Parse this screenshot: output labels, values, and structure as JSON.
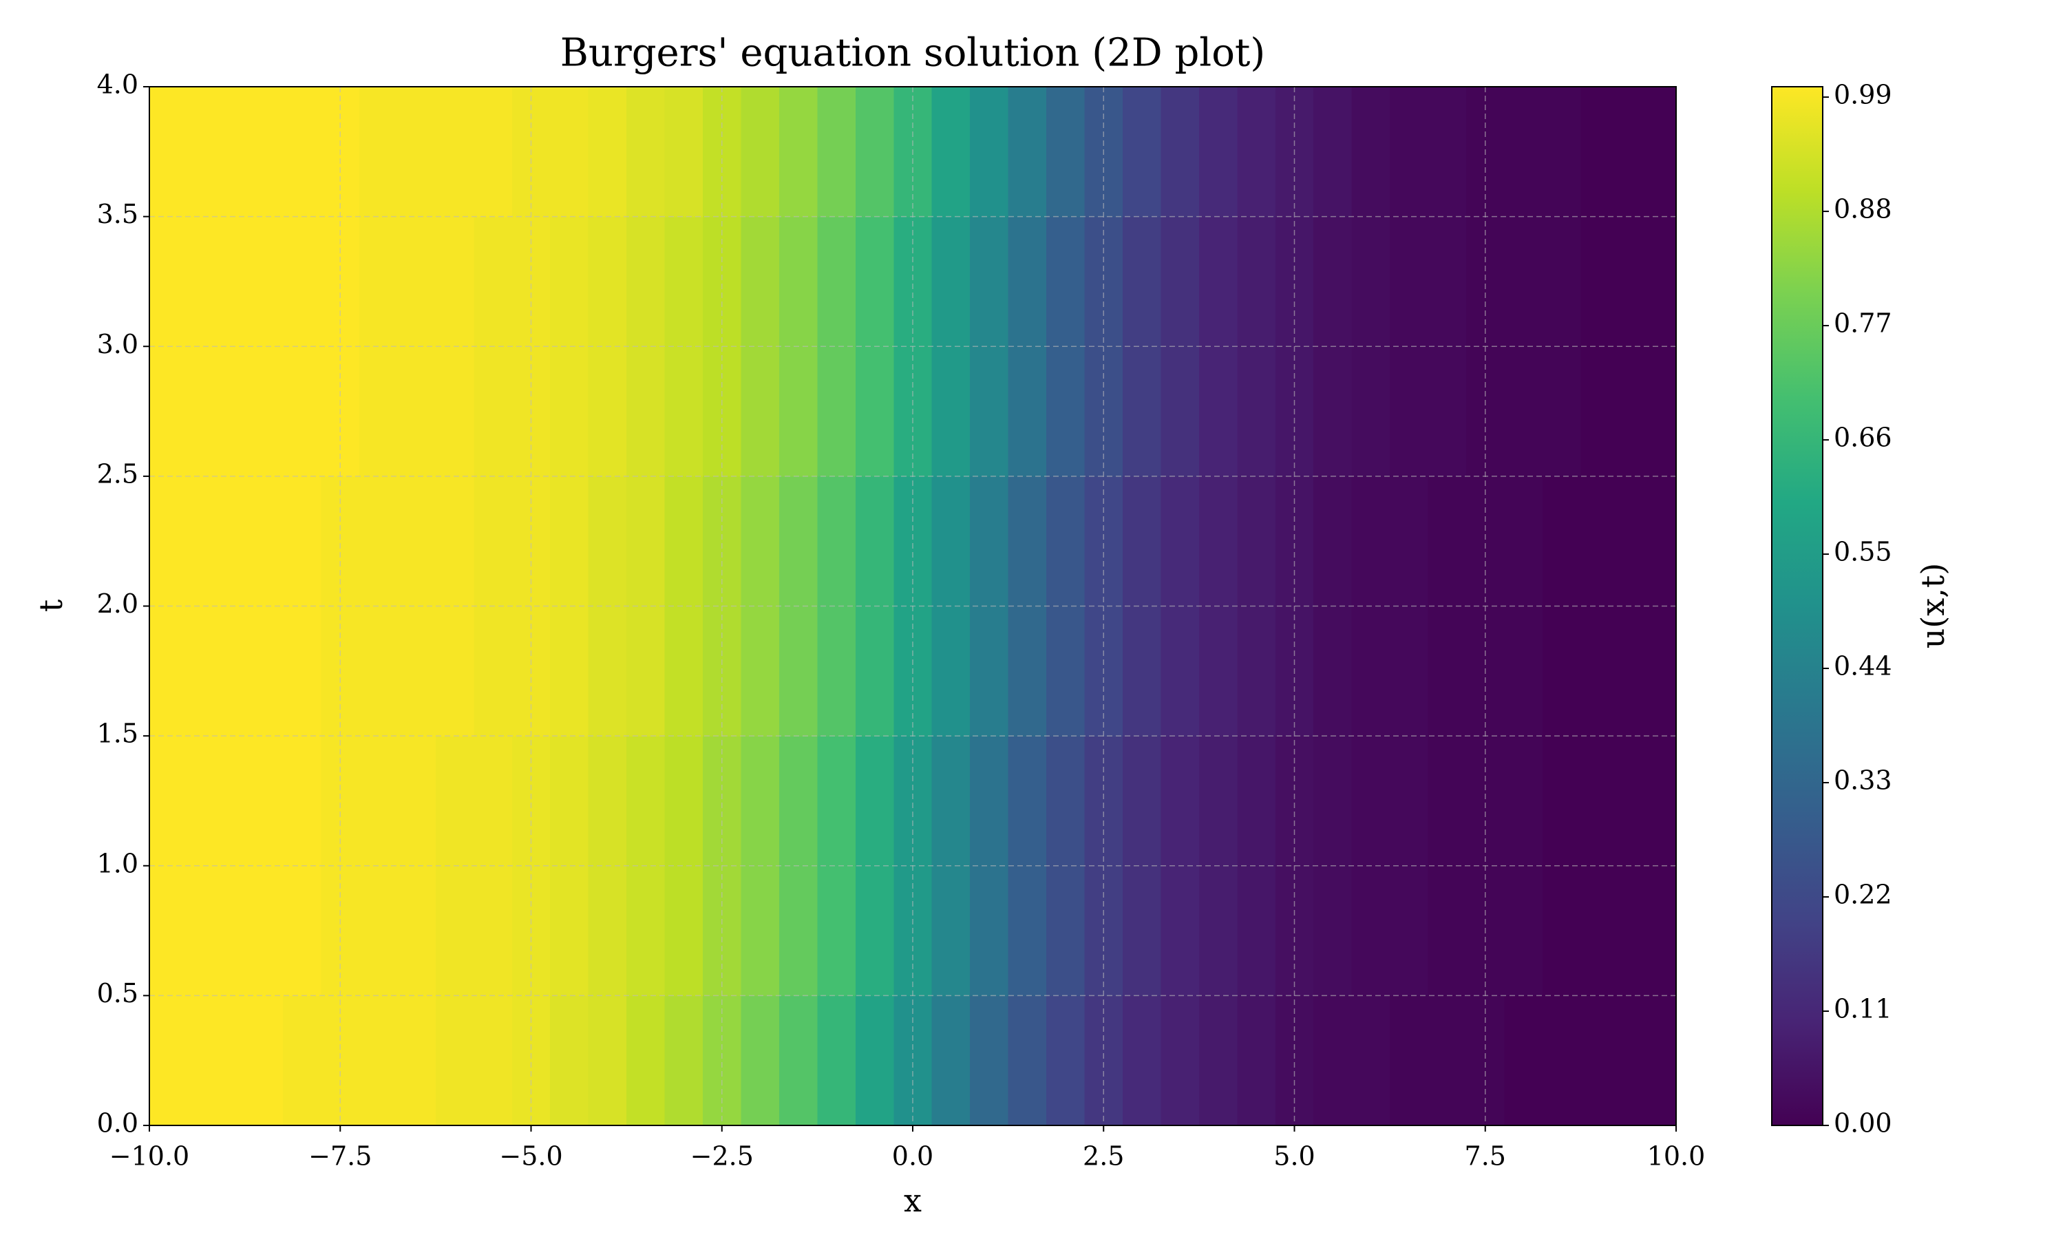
{
  "chart_data": {
    "type": "heatmap",
    "title": "Burgers' equation solution (2D plot)",
    "x_label": "x",
    "y_label": "t",
    "colorbar_label": "u(x,t)",
    "colormap": "viridis",
    "grid": true,
    "x": [
      -10,
      -9.5,
      -9,
      -8.5,
      -8,
      -7.5,
      -7,
      -6.5,
      -6,
      -5.5,
      -5,
      -4.5,
      -4,
      -3.5,
      -3,
      -2.5,
      -2,
      -1.5,
      -1,
      -0.5,
      0,
      0.5,
      1,
      1.5,
      2,
      2.5,
      3,
      3.5,
      4,
      4.5,
      5,
      5.5,
      6,
      6.5,
      7,
      7.5,
      8,
      8.5,
      9,
      9.5,
      10
    ],
    "y": [
      0,
      1,
      2,
      3,
      4
    ],
    "z": [
      [
        1.0,
        1.0,
        1.0,
        1.0,
        0.99,
        0.99,
        0.99,
        0.99,
        0.98,
        0.98,
        0.97,
        0.95,
        0.94,
        0.91,
        0.88,
        0.84,
        0.79,
        0.73,
        0.66,
        0.58,
        0.5,
        0.42,
        0.34,
        0.27,
        0.21,
        0.16,
        0.12,
        0.09,
        0.07,
        0.05,
        0.03,
        0.02,
        0.02,
        0.01,
        0.01,
        0.01,
        0.0,
        0.0,
        0.0,
        0.0,
        0.0
      ],
      [
        1.0,
        1.0,
        1.0,
        1.0,
        1.0,
        0.99,
        0.99,
        0.99,
        0.98,
        0.98,
        0.97,
        0.96,
        0.94,
        0.92,
        0.9,
        0.86,
        0.82,
        0.76,
        0.7,
        0.62,
        0.54,
        0.46,
        0.38,
        0.3,
        0.24,
        0.18,
        0.14,
        0.1,
        0.08,
        0.06,
        0.04,
        0.03,
        0.02,
        0.02,
        0.01,
        0.01,
        0.01,
        0.0,
        0.0,
        0.0,
        0.0
      ],
      [
        1.0,
        1.0,
        1.0,
        1.0,
        1.0,
        0.99,
        0.99,
        0.99,
        0.99,
        0.98,
        0.98,
        0.97,
        0.95,
        0.94,
        0.91,
        0.88,
        0.84,
        0.79,
        0.73,
        0.66,
        0.58,
        0.5,
        0.42,
        0.34,
        0.27,
        0.21,
        0.16,
        0.12,
        0.09,
        0.07,
        0.05,
        0.03,
        0.02,
        0.02,
        0.01,
        0.01,
        0.01,
        0.0,
        0.0,
        0.0,
        0.0
      ],
      [
        1.0,
        1.0,
        1.0,
        1.0,
        1.0,
        1.0,
        0.99,
        0.99,
        0.99,
        0.98,
        0.98,
        0.97,
        0.96,
        0.94,
        0.92,
        0.9,
        0.86,
        0.82,
        0.76,
        0.7,
        0.62,
        0.54,
        0.46,
        0.38,
        0.3,
        0.24,
        0.18,
        0.14,
        0.1,
        0.08,
        0.06,
        0.04,
        0.03,
        0.02,
        0.02,
        0.01,
        0.01,
        0.01,
        0.0,
        0.0,
        0.0
      ],
      [
        1.0,
        1.0,
        1.0,
        1.0,
        1.0,
        1.0,
        0.99,
        0.99,
        0.99,
        0.99,
        0.98,
        0.98,
        0.97,
        0.95,
        0.94,
        0.91,
        0.88,
        0.84,
        0.79,
        0.73,
        0.66,
        0.58,
        0.5,
        0.42,
        0.34,
        0.27,
        0.21,
        0.16,
        0.12,
        0.09,
        0.07,
        0.05,
        0.03,
        0.02,
        0.02,
        0.01,
        0.01,
        0.01,
        0.0,
        0.0,
        0.0
      ]
    ],
    "xlim": [
      -10,
      10
    ],
    "ylim": [
      0,
      4
    ],
    "clim": [
      0,
      1
    ],
    "xticks": [
      {
        "value": -10,
        "label": "−10.0"
      },
      {
        "value": -7.5,
        "label": "−7.5"
      },
      {
        "value": -5,
        "label": "−5.0"
      },
      {
        "value": -2.5,
        "label": "−2.5"
      },
      {
        "value": 0,
        "label": "0.0"
      },
      2.5,
      {
        "value": 5,
        "label": "5.0"
      },
      7.5,
      {
        "value": 10,
        "label": "10.0"
      }
    ],
    "yticks": [
      {
        "value": 0,
        "label": "0.0"
      },
      0.5,
      {
        "value": 1,
        "label": "1.0"
      },
      1.5,
      {
        "value": 2,
        "label": "2.0"
      },
      2.5,
      {
        "value": 3,
        "label": "3.0"
      },
      3.5,
      {
        "value": 4,
        "label": "4.0"
      }
    ],
    "cticks": [
      {
        "value": 0,
        "label": "0.00"
      },
      0.11,
      0.22,
      0.33,
      0.44,
      0.55,
      0.66,
      0.77,
      0.88,
      0.99
    ]
  }
}
